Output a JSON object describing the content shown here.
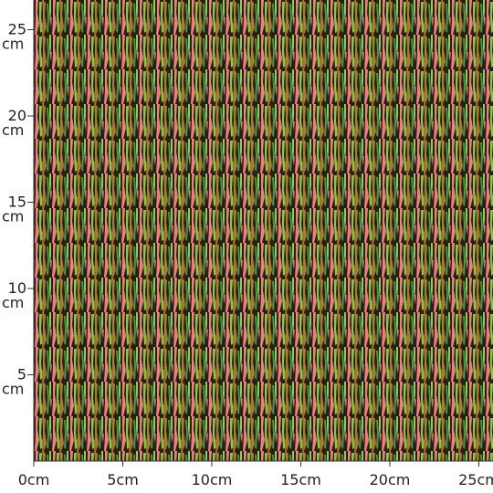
{
  "ruler": {
    "x_labels": [
      "0cm",
      "5cm",
      "10cm",
      "15cm",
      "20cm",
      "25cm"
    ],
    "y_labels": [
      {
        "number": "5",
        "unit": "cm"
      },
      {
        "number": "10",
        "unit": "cm"
      },
      {
        "number": "15",
        "unit": "cm"
      },
      {
        "number": "20",
        "unit": "cm"
      },
      {
        "number": "25",
        "unit": "cm"
      }
    ]
  }
}
